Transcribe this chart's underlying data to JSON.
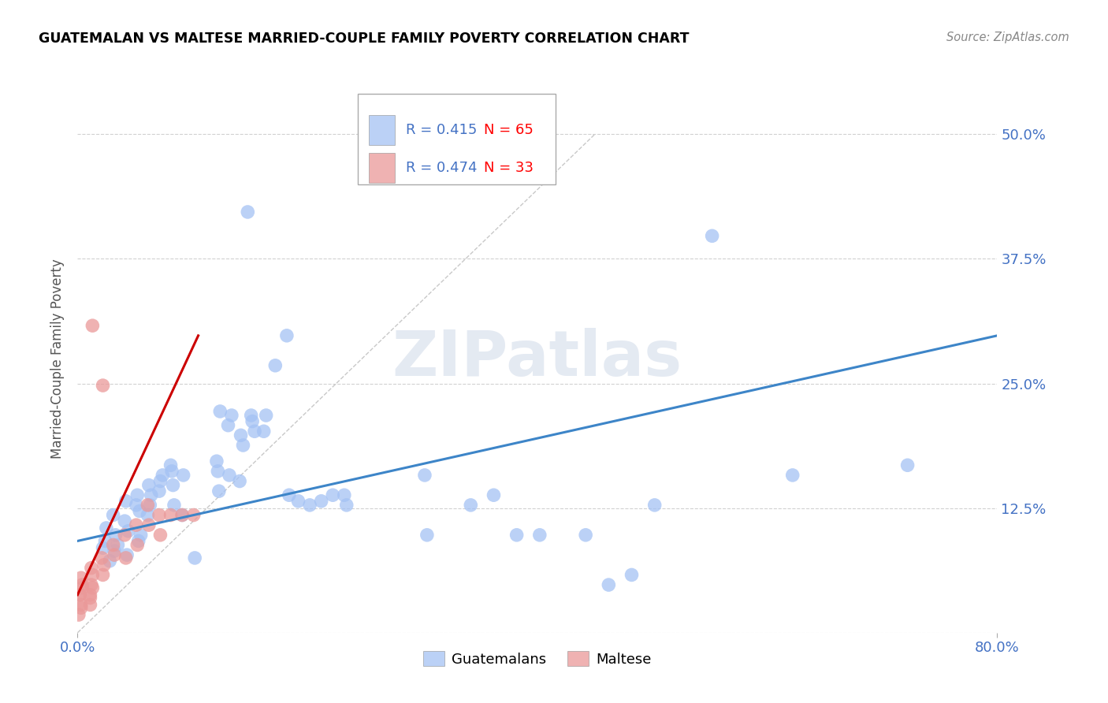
{
  "title": "GUATEMALAN VS MALTESE MARRIED-COUPLE FAMILY POVERTY CORRELATION CHART",
  "source": "Source: ZipAtlas.com",
  "ylabel": "Married-Couple Family Poverty",
  "xlim": [
    0.0,
    0.8
  ],
  "ylim": [
    0.0,
    0.55
  ],
  "watermark": "ZIPatlas",
  "blue_color": "#a4c2f4",
  "pink_color": "#ea9999",
  "line_blue_color": "#3d85c8",
  "line_pink_color": "#cc0000",
  "line_dash_color": "#bbbbbb",
  "background_color": "#ffffff",
  "grid_color": "#cccccc",
  "title_color": "#000000",
  "axis_label_color": "#4472c4",
  "blue_scatter": [
    [
      0.022,
      0.085
    ],
    [
      0.025,
      0.105
    ],
    [
      0.028,
      0.072
    ],
    [
      0.024,
      0.092
    ],
    [
      0.032,
      0.082
    ],
    [
      0.031,
      0.118
    ],
    [
      0.033,
      0.098
    ],
    [
      0.035,
      0.088
    ],
    [
      0.042,
      0.132
    ],
    [
      0.044,
      0.102
    ],
    [
      0.041,
      0.112
    ],
    [
      0.043,
      0.078
    ],
    [
      0.052,
      0.138
    ],
    [
      0.054,
      0.122
    ],
    [
      0.051,
      0.128
    ],
    [
      0.055,
      0.098
    ],
    [
      0.053,
      0.092
    ],
    [
      0.062,
      0.148
    ],
    [
      0.064,
      0.138
    ],
    [
      0.061,
      0.118
    ],
    [
      0.063,
      0.128
    ],
    [
      0.072,
      0.152
    ],
    [
      0.074,
      0.158
    ],
    [
      0.071,
      0.142
    ],
    [
      0.082,
      0.162
    ],
    [
      0.084,
      0.128
    ],
    [
      0.081,
      0.168
    ],
    [
      0.083,
      0.148
    ],
    [
      0.092,
      0.158
    ],
    [
      0.091,
      0.118
    ],
    [
      0.102,
      0.075
    ],
    [
      0.122,
      0.162
    ],
    [
      0.124,
      0.222
    ],
    [
      0.121,
      0.172
    ],
    [
      0.123,
      0.142
    ],
    [
      0.132,
      0.158
    ],
    [
      0.134,
      0.218
    ],
    [
      0.131,
      0.208
    ],
    [
      0.142,
      0.198
    ],
    [
      0.144,
      0.188
    ],
    [
      0.141,
      0.152
    ],
    [
      0.152,
      0.212
    ],
    [
      0.154,
      0.202
    ],
    [
      0.151,
      0.218
    ],
    [
      0.162,
      0.202
    ],
    [
      0.164,
      0.218
    ],
    [
      0.172,
      0.268
    ],
    [
      0.182,
      0.298
    ],
    [
      0.184,
      0.138
    ],
    [
      0.192,
      0.132
    ],
    [
      0.202,
      0.128
    ],
    [
      0.212,
      0.132
    ],
    [
      0.222,
      0.138
    ],
    [
      0.232,
      0.138
    ],
    [
      0.234,
      0.128
    ],
    [
      0.148,
      0.422
    ],
    [
      0.302,
      0.158
    ],
    [
      0.304,
      0.098
    ],
    [
      0.342,
      0.128
    ],
    [
      0.362,
      0.138
    ],
    [
      0.382,
      0.098
    ],
    [
      0.402,
      0.098
    ],
    [
      0.442,
      0.098
    ],
    [
      0.462,
      0.048
    ],
    [
      0.482,
      0.058
    ],
    [
      0.502,
      0.128
    ],
    [
      0.552,
      0.398
    ],
    [
      0.622,
      0.158
    ],
    [
      0.722,
      0.168
    ]
  ],
  "pink_scatter": [
    [
      0.002,
      0.038
    ],
    [
      0.003,
      0.028
    ],
    [
      0.001,
      0.018
    ],
    [
      0.004,
      0.048
    ],
    [
      0.003,
      0.055
    ],
    [
      0.002,
      0.038
    ],
    [
      0.004,
      0.045
    ],
    [
      0.003,
      0.025
    ],
    [
      0.012,
      0.048
    ],
    [
      0.011,
      0.038
    ],
    [
      0.013,
      0.058
    ],
    [
      0.011,
      0.028
    ],
    [
      0.012,
      0.065
    ],
    [
      0.013,
      0.045
    ],
    [
      0.011,
      0.035
    ],
    [
      0.021,
      0.075
    ],
    [
      0.022,
      0.058
    ],
    [
      0.023,
      0.068
    ],
    [
      0.031,
      0.088
    ],
    [
      0.032,
      0.078
    ],
    [
      0.041,
      0.098
    ],
    [
      0.042,
      0.075
    ],
    [
      0.051,
      0.108
    ],
    [
      0.052,
      0.088
    ],
    [
      0.013,
      0.308
    ],
    [
      0.022,
      0.248
    ],
    [
      0.061,
      0.128
    ],
    [
      0.062,
      0.108
    ],
    [
      0.071,
      0.118
    ],
    [
      0.072,
      0.098
    ],
    [
      0.081,
      0.118
    ],
    [
      0.091,
      0.118
    ],
    [
      0.101,
      0.118
    ]
  ],
  "blue_line_x": [
    0.0,
    0.8
  ],
  "blue_line_y": [
    0.092,
    0.298
  ],
  "pink_line_x": [
    0.0,
    0.105
  ],
  "pink_line_y": [
    0.038,
    0.298
  ],
  "diag_line_x": [
    0.0,
    0.45
  ],
  "diag_line_y": [
    0.0,
    0.5
  ]
}
